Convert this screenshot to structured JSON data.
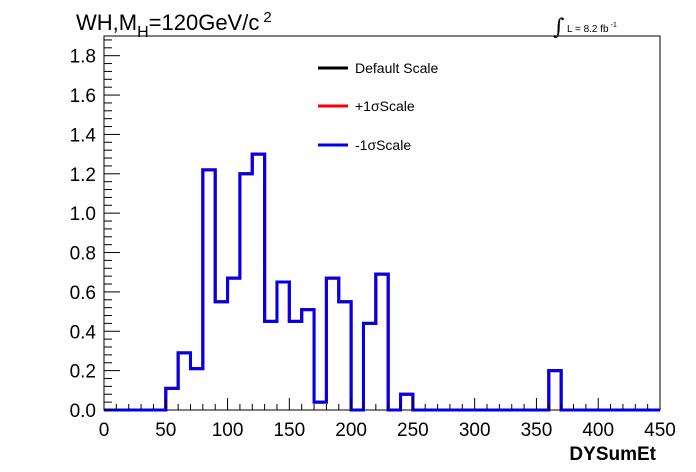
{
  "chart_data": {
    "type": "histogram",
    "title": {
      "prefix": "WH,M",
      "subscript": "H",
      "value": "=120GeV/c",
      "superscript": "2"
    },
    "luminosity": {
      "integral_symbol": "∫",
      "text": "L = 8.2 fb",
      "superscript": "-1"
    },
    "xlabel": "DYSumEt",
    "ylabel": "",
    "xlim": [
      0,
      450
    ],
    "ylim": [
      0,
      1.9
    ],
    "x_ticks": [
      0,
      50,
      100,
      150,
      200,
      250,
      300,
      350,
      400,
      450
    ],
    "x_tick_labels": [
      "0",
      "50",
      "100",
      "150",
      "200",
      "250",
      "300",
      "350",
      "400",
      "450"
    ],
    "y_ticks": [
      0,
      0.2,
      0.4,
      0.6,
      0.8,
      1.0,
      1.2,
      1.4,
      1.6,
      1.8
    ],
    "y_tick_labels": [
      "0.0",
      "0.2",
      "0.4",
      "0.6",
      "0.8",
      "1.0",
      "1.2",
      "1.4",
      "1.6",
      "1.8"
    ],
    "bin_edges": [
      0,
      10,
      20,
      30,
      40,
      50,
      60,
      70,
      80,
      90,
      100,
      110,
      120,
      130,
      140,
      150,
      160,
      170,
      180,
      190,
      200,
      210,
      220,
      230,
      240,
      250,
      260,
      270,
      280,
      290,
      300,
      310,
      320,
      330,
      340,
      350,
      360,
      370,
      380,
      390,
      400,
      410,
      420,
      430,
      440,
      450
    ],
    "series": [
      {
        "name": "Default Scale",
        "color": "#000000",
        "values": [
          0,
          0,
          0,
          0,
          0,
          0.11,
          0.29,
          0.21,
          1.22,
          0.55,
          0.67,
          1.2,
          1.3,
          0.45,
          0.65,
          0.45,
          0.51,
          0.04,
          0.67,
          0.55,
          0,
          0.44,
          0.69,
          0,
          0.08,
          0,
          0,
          0,
          0,
          0,
          0,
          0,
          0,
          0,
          0,
          0,
          0.2,
          0,
          0,
          0,
          0,
          0,
          0,
          0,
          0
        ]
      },
      {
        "name": "+1σScale",
        "color": "#ff0000",
        "values": [
          0,
          0,
          0,
          0,
          0,
          0.11,
          0.29,
          0.21,
          1.22,
          0.55,
          0.67,
          1.2,
          1.3,
          0.45,
          0.65,
          0.45,
          0.51,
          0.04,
          0.67,
          0.55,
          0,
          0.44,
          0.69,
          0,
          0.08,
          0,
          0,
          0,
          0,
          0,
          0,
          0,
          0,
          0,
          0,
          0,
          0.2,
          0,
          0,
          0,
          0,
          0,
          0,
          0,
          0
        ]
      },
      {
        "name": "-1σScale",
        "color": "#0000ee",
        "values": [
          0,
          0,
          0,
          0,
          0,
          0.11,
          0.29,
          0.21,
          1.22,
          0.55,
          0.67,
          1.2,
          1.3,
          0.45,
          0.65,
          0.45,
          0.51,
          0.04,
          0.67,
          0.55,
          0,
          0.44,
          0.69,
          0,
          0.08,
          0,
          0,
          0,
          0,
          0,
          0,
          0,
          0,
          0,
          0,
          0,
          0.2,
          0,
          0,
          0,
          0,
          0,
          0,
          0,
          0
        ]
      }
    ],
    "legend_position": "top-center",
    "grid": false
  }
}
